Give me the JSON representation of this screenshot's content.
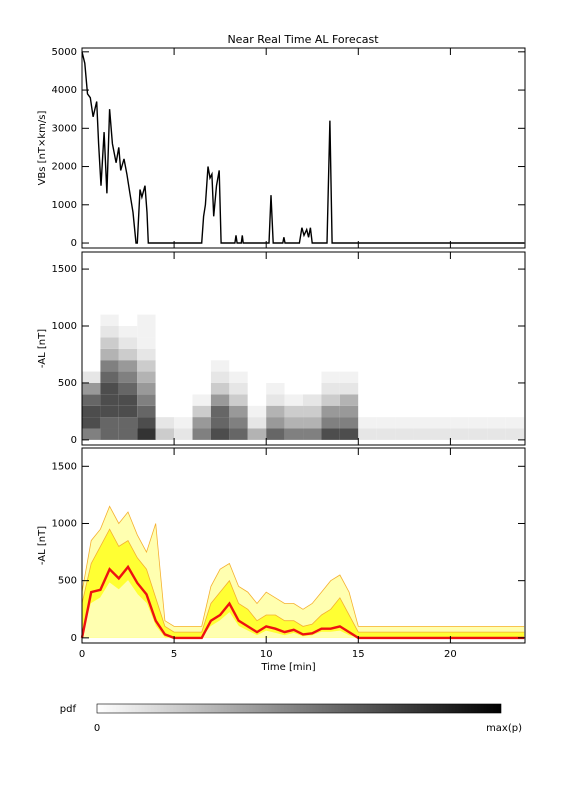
{
  "chart_data": [
    {
      "type": "line",
      "title": "Near Real Time AL Forecast",
      "ylabel": "VBs [nT×km/s]",
      "x": [
        0,
        0.15,
        0.3,
        0.45,
        0.6,
        0.8,
        0.9,
        1.03,
        1.2,
        1.35,
        1.5,
        1.65,
        1.85,
        2.0,
        2.1,
        2.28,
        2.44,
        2.6,
        2.77,
        2.93,
        3.0,
        3.15,
        3.25,
        3.42,
        3.53,
        3.6,
        6.5,
        6.6,
        6.7,
        6.84,
        6.95,
        7.05,
        7.15,
        7.3,
        7.45,
        7.55,
        8.3,
        8.36,
        8.42,
        8.65,
        8.7,
        8.75,
        10.15,
        10.26,
        10.38,
        10.9,
        10.96,
        11.02,
        11.8,
        11.94,
        12.05,
        12.2,
        12.3,
        12.4,
        12.5,
        13.3,
        13.46,
        13.58,
        24
      ],
      "values": [
        5000,
        4700,
        3900,
        3800,
        3300,
        3700,
        2600,
        1500,
        2900,
        1300,
        3500,
        2600,
        2100,
        2500,
        1900,
        2200,
        1800,
        1300,
        800,
        0,
        0,
        1400,
        1200,
        1500,
        800,
        0,
        0,
        700,
        1000,
        2000,
        1700,
        1800,
        700,
        1500,
        1900,
        0,
        0,
        200,
        0,
        0,
        200,
        0,
        0,
        1250,
        0,
        0,
        150,
        0,
        0,
        400,
        200,
        350,
        150,
        400,
        0,
        0,
        3200,
        0,
        0
      ],
      "color": "#000000",
      "xlim": [
        0,
        24.05
      ],
      "ylim": [
        -130,
        5100
      ],
      "yticks": [
        0,
        1000,
        2000,
        3000,
        4000,
        5000
      ],
      "xticks": [
        0,
        5,
        10,
        15,
        20
      ],
      "xtick_labels": false
    },
    {
      "type": "heatmap",
      "ylabel": "-AL [nT]",
      "x_bins": [
        0,
        1,
        2,
        3,
        4,
        5,
        6,
        7,
        8,
        9,
        10,
        11,
        12,
        13,
        14,
        15,
        16,
        17,
        18,
        19,
        20,
        21,
        22,
        23,
        24
      ],
      "y_bins": [
        0,
        100,
        200,
        300,
        400,
        500,
        600,
        700,
        800,
        900,
        1000,
        1100
      ],
      "z": [
        [
          0.5,
          0.6,
          0.6,
          0.8,
          0.2,
          0.1,
          0.5,
          0.7,
          0.6,
          0.3,
          0.6,
          0.5,
          0.5,
          0.7,
          0.7,
          0.1,
          0.1,
          0.1,
          0.1,
          0.1,
          0.1,
          0.1,
          0.1,
          0.1
        ],
        [
          0.7,
          0.6,
          0.6,
          0.7,
          0.1,
          0.05,
          0.4,
          0.6,
          0.5,
          0.1,
          0.4,
          0.3,
          0.3,
          0.5,
          0.5,
          0.05,
          0.05,
          0.05,
          0.05,
          0.05,
          0.05,
          0.05,
          0.05,
          0.05
        ],
        [
          0.7,
          0.7,
          0.7,
          0.6,
          0,
          0,
          0.2,
          0.6,
          0.4,
          0.05,
          0.3,
          0.2,
          0.2,
          0.4,
          0.4,
          0,
          0,
          0,
          0,
          0,
          0,
          0,
          0,
          0
        ],
        [
          0.6,
          0.7,
          0.7,
          0.5,
          0,
          0,
          0.05,
          0.4,
          0.2,
          0,
          0.1,
          0.05,
          0.1,
          0.2,
          0.3,
          0,
          0,
          0,
          0,
          0,
          0,
          0,
          0,
          0
        ],
        [
          0.4,
          0.7,
          0.6,
          0.4,
          0,
          0,
          0,
          0.2,
          0.1,
          0,
          0.05,
          0,
          0,
          0.1,
          0.1,
          0,
          0,
          0,
          0,
          0,
          0,
          0,
          0,
          0
        ],
        [
          0.1,
          0.6,
          0.5,
          0.3,
          0,
          0,
          0,
          0.1,
          0.05,
          0,
          0,
          0,
          0,
          0.05,
          0.05,
          0,
          0,
          0,
          0,
          0,
          0,
          0,
          0,
          0
        ],
        [
          0,
          0.5,
          0.4,
          0.2,
          0,
          0,
          0,
          0.05,
          0,
          0,
          0,
          0,
          0,
          0,
          0,
          0,
          0,
          0,
          0,
          0,
          0,
          0,
          0,
          0
        ],
        [
          0,
          0.3,
          0.2,
          0.1,
          0,
          0,
          0,
          0,
          0,
          0,
          0,
          0,
          0,
          0,
          0,
          0,
          0,
          0,
          0,
          0,
          0,
          0,
          0,
          0
        ],
        [
          0,
          0.2,
          0.1,
          0.05,
          0,
          0,
          0,
          0,
          0,
          0,
          0,
          0,
          0,
          0,
          0,
          0,
          0,
          0,
          0,
          0,
          0,
          0,
          0,
          0
        ],
        [
          0,
          0.1,
          0.05,
          0.05,
          0,
          0,
          0,
          0,
          0,
          0,
          0,
          0,
          0,
          0,
          0,
          0,
          0,
          0,
          0,
          0,
          0,
          0,
          0,
          0
        ],
        [
          0,
          0.05,
          0,
          0.05,
          0,
          0,
          0,
          0,
          0,
          0,
          0,
          0,
          0,
          0,
          0,
          0,
          0,
          0,
          0,
          0,
          0,
          0,
          0,
          0
        ]
      ],
      "xlim": [
        0,
        24.05
      ],
      "ylim": [
        -45,
        1650
      ],
      "yticks": [
        0,
        500,
        1000,
        1500
      ],
      "xticks": [
        0,
        5,
        10,
        15,
        20
      ],
      "xtick_labels": false,
      "colorbar": {
        "label": "pdf",
        "min_label": "0",
        "max_label": "max(p)"
      }
    },
    {
      "type": "band",
      "ylabel": "-AL [nT]",
      "xlabel": "Time [min]",
      "x": [
        0,
        0.5,
        1,
        1.5,
        2,
        2.5,
        3,
        3.5,
        4,
        4.5,
        5,
        5.5,
        6,
        6.5,
        7,
        7.5,
        8,
        8.5,
        9,
        9.5,
        10,
        10.5,
        11,
        11.5,
        12,
        12.5,
        13,
        13.5,
        14,
        14.5,
        15,
        24
      ],
      "series": [
        {
          "color": "#ffffb0",
          "edge": "#f5b030",
          "fill": true,
          "values": [
            400,
            850,
            950,
            1150,
            1000,
            1100,
            900,
            750,
            1000,
            150,
            100,
            100,
            100,
            100,
            450,
            600,
            650,
            450,
            400,
            300,
            400,
            350,
            300,
            300,
            250,
            300,
            400,
            500,
            550,
            400,
            100,
            100
          ]
        },
        {
          "color": "#ffff33",
          "edge": "#f5b030",
          "fill": true,
          "values": [
            300,
            650,
            800,
            950,
            800,
            850,
            700,
            600,
            350,
            100,
            50,
            50,
            50,
            50,
            300,
            400,
            500,
            300,
            250,
            150,
            200,
            200,
            150,
            150,
            100,
            120,
            200,
            250,
            350,
            200,
            50,
            50
          ]
        },
        {
          "color": "#ffffb0",
          "edge": "#ffffb0",
          "fill": true,
          "values": [
            0,
            300,
            350,
            480,
            420,
            500,
            380,
            300,
            100,
            0,
            0,
            0,
            0,
            0,
            100,
            150,
            220,
            100,
            60,
            20,
            60,
            40,
            20,
            40,
            10,
            20,
            50,
            50,
            60,
            20,
            0,
            0
          ]
        },
        {
          "color": "#ee1111",
          "fill": false,
          "values": [
            0,
            400,
            420,
            600,
            520,
            620,
            480,
            380,
            150,
            30,
            0,
            0,
            0,
            0,
            150,
            200,
            300,
            150,
            100,
            50,
            100,
            80,
            50,
            70,
            30,
            40,
            80,
            80,
            100,
            50,
            0,
            0
          ]
        }
      ],
      "xlim": [
        0,
        24.05
      ],
      "ylim": [
        -45,
        1660
      ],
      "yticks": [
        0,
        500,
        1000,
        1500
      ],
      "xticks": [
        0,
        5,
        10,
        15,
        20
      ],
      "xtick_labels": true
    }
  ]
}
